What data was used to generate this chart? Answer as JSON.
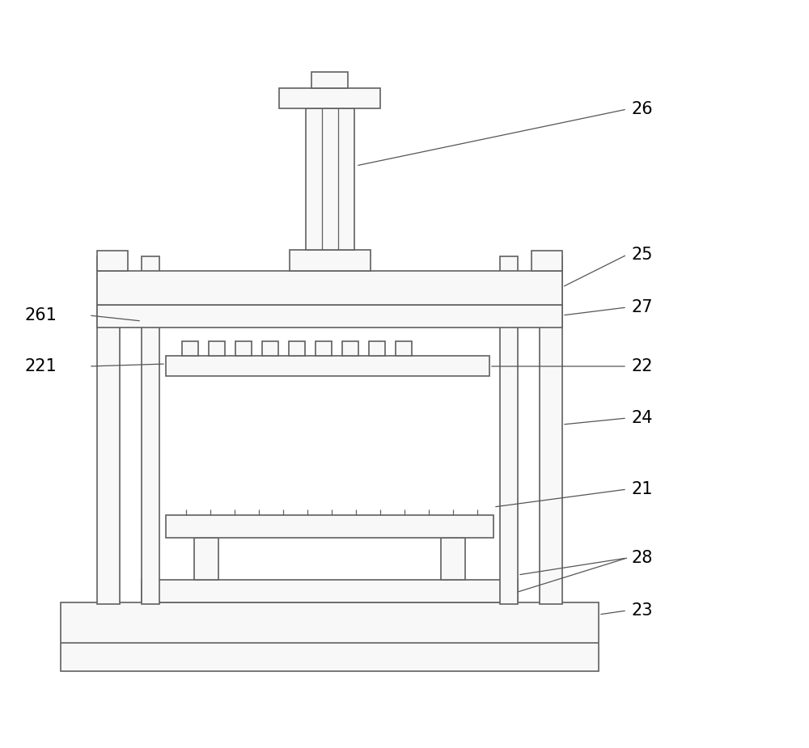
{
  "bg_color": "#ffffff",
  "line_color": "#606060",
  "line_width": 1.2,
  "fig_width": 10.0,
  "fig_height": 9.25,
  "dpi": 100
}
